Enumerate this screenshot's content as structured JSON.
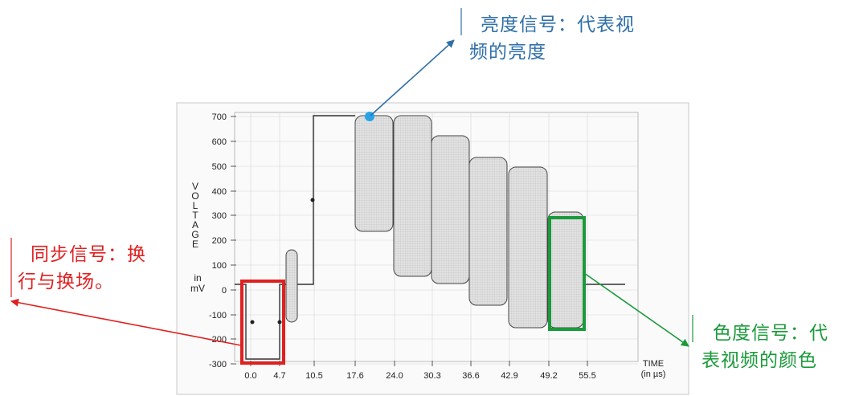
{
  "annotations": {
    "luma": {
      "line1": "亮度信号：代表视",
      "line2": "频的亮度",
      "color": "#2f6fa8"
    },
    "sync": {
      "line1": "同步信号：换",
      "line2": "行与换场。",
      "color": "#e02020"
    },
    "chroma": {
      "line1": "色度信号：代",
      "line2": "表视频的颜色",
      "color": "#1a9a3a"
    }
  },
  "chart_data": {
    "type": "diagram",
    "y_axis": {
      "label_letters": [
        "V",
        "O",
        "L",
        "T",
        "A",
        "G",
        "E"
      ],
      "unit_line1": "in",
      "unit_line2": "mV",
      "range": [
        -300,
        700
      ],
      "ticks": [
        "700",
        "600",
        "500",
        "400",
        "300",
        "200",
        "100",
        "0",
        "-100",
        "-200",
        "-300"
      ]
    },
    "x_axis": {
      "label_line1": "TIME",
      "label_line2": "(in µs)",
      "ticks": [
        "0.0",
        "4.7",
        "10.5",
        "17.6",
        "24.0",
        "30.3",
        "36.6",
        "42.9",
        "49.2",
        "55.5"
      ]
    },
    "colors": {
      "waveform": "#333333",
      "box_fill": "#dedede",
      "marker": "#29a3e6",
      "sync_box": "#e02020",
      "chroma_box": "#1a9a3a"
    }
  }
}
